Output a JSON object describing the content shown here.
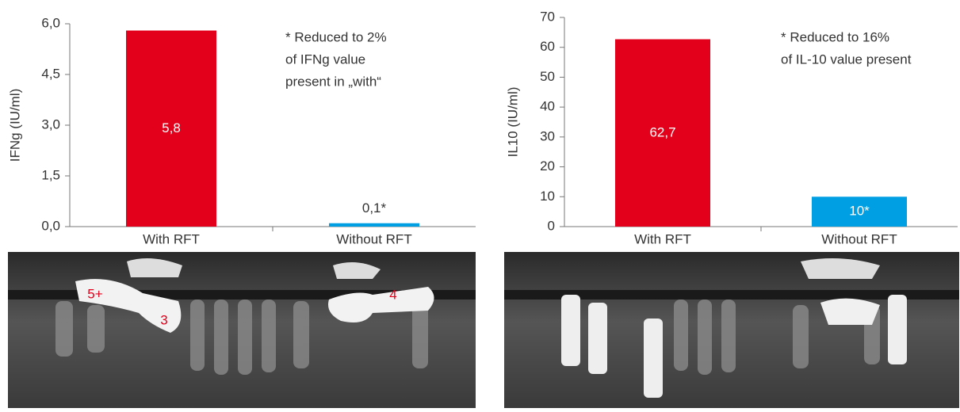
{
  "chart_data": [
    {
      "type": "bar",
      "ylabel": "IFNg (IU/ml)",
      "categories": [
        "With RFT",
        "Without RFT"
      ],
      "values": [
        5.8,
        0.1
      ],
      "value_labels": [
        "5,8",
        "0,1*"
      ],
      "colors": [
        "#e2001a",
        "#009fe3"
      ],
      "ylim": [
        0,
        6
      ],
      "yticks": [
        {
          "value": 0,
          "label": "0,0"
        },
        {
          "value": 1.5,
          "label": "1,5"
        },
        {
          "value": 3,
          "label": "3,0"
        },
        {
          "value": 4.5,
          "label": "4,5"
        },
        {
          "value": 6,
          "label": "6,0"
        }
      ],
      "annotation": [
        "* Reduced to 2%",
        "of IFNg value",
        "present in „with“"
      ]
    },
    {
      "type": "bar",
      "ylabel": "IL10 (IU/ml)",
      "categories": [
        "With RFT",
        "Without RFT"
      ],
      "values": [
        62.7,
        10
      ],
      "value_labels": [
        "62,7",
        "10*"
      ],
      "colors": [
        "#e2001a",
        "#009fe3"
      ],
      "ylim": [
        0,
        70
      ],
      "yticks": [
        0,
        10,
        20,
        30,
        40,
        50,
        60,
        70
      ],
      "annotation": [
        "* Reduced to 16%",
        "of IL-10 value present"
      ]
    }
  ],
  "images": [
    {
      "labels": [
        "5+",
        "3",
        "4"
      ]
    }
  ]
}
